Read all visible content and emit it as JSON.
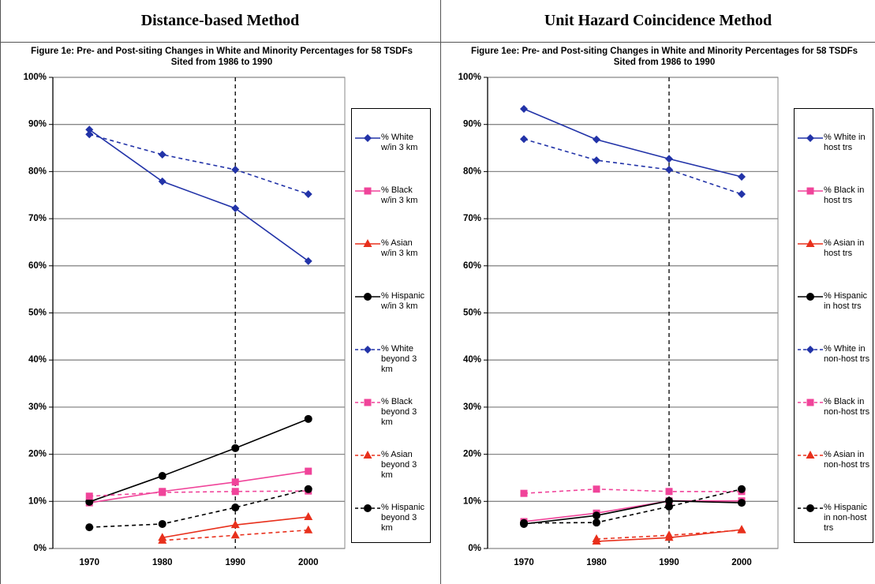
{
  "headers": [
    "Distance-based Method",
    "Unit Hazard Coincidence Method"
  ],
  "chart_data": [
    {
      "type": "line",
      "title": "Figure 1e: Pre- and Post-siting Changes in White and Minority Percentages for 58 TSDFs Sited from 1986 to 1990",
      "categories": [
        "1970",
        "1980",
        "1990",
        "2000"
      ],
      "ylim": [
        0,
        100
      ],
      "yticks": [
        {
          "value": 0,
          "label": "0%"
        },
        {
          "value": 10,
          "label": "10%"
        },
        {
          "value": 20,
          "label": "20%"
        },
        {
          "value": 30,
          "label": "30%"
        },
        {
          "value": 40,
          "label": "40%"
        },
        {
          "value": 50,
          "label": "50%"
        },
        {
          "value": 60,
          "label": "60%"
        },
        {
          "value": 70,
          "label": "70%"
        },
        {
          "value": 80,
          "label": "80%"
        },
        {
          "value": 90,
          "label": "90%"
        },
        {
          "value": 100,
          "label": "100%"
        }
      ],
      "grid": true,
      "vline": "1990",
      "legend": "right",
      "series": [
        {
          "name": "% White w/in 3 km",
          "color": "#2233a8",
          "marker": "diamond",
          "dashed": false,
          "values": [
            88.9,
            77.9,
            72.2,
            61.0
          ]
        },
        {
          "name": "% Black w/in 3 km",
          "color": "#f0449a",
          "marker": "square",
          "dashed": false,
          "values": [
            9.7,
            12.1,
            14.1,
            16.4
          ]
        },
        {
          "name": "% Asian w/in 3 km",
          "color": "#e8301c",
          "marker": "triangle",
          "dashed": false,
          "values": [
            null,
            2.3,
            5.0,
            6.7
          ]
        },
        {
          "name": "% Hispanic w/in 3 km",
          "color": "#000000",
          "marker": "circle",
          "dashed": false,
          "values": [
            9.9,
            15.4,
            21.3,
            27.5
          ]
        },
        {
          "name": "% White beyond 3 km",
          "color": "#2233a8",
          "marker": "diamond",
          "dashed": true,
          "values": [
            87.9,
            83.6,
            80.4,
            75.2
          ]
        },
        {
          "name": "% Black beyond 3 km",
          "color": "#f0449a",
          "marker": "square",
          "dashed": true,
          "values": [
            11.1,
            11.9,
            12.1,
            12.2
          ]
        },
        {
          "name": "% Asian beyond 3 km",
          "color": "#e8301c",
          "marker": "triangle",
          "dashed": true,
          "values": [
            null,
            1.7,
            2.8,
            3.9
          ]
        },
        {
          "name": "% Hispanic beyond 3 km",
          "color": "#000000",
          "marker": "circle",
          "dashed": true,
          "values": [
            4.5,
            5.2,
            8.7,
            12.6
          ]
        }
      ]
    },
    {
      "type": "line",
      "title": "Figure 1ee: Pre- and Post-siting Changes in White and Minority Percentages for 58 TSDFs Sited from 1986 to 1990",
      "categories": [
        "1970",
        "1980",
        "1990",
        "2000"
      ],
      "ylim": [
        0,
        100
      ],
      "yticks": [
        {
          "value": 0,
          "label": "0%"
        },
        {
          "value": 10,
          "label": "10%"
        },
        {
          "value": 20,
          "label": "20%"
        },
        {
          "value": 30,
          "label": "30%"
        },
        {
          "value": 40,
          "label": "40%"
        },
        {
          "value": 50,
          "label": "50%"
        },
        {
          "value": 60,
          "label": "60%"
        },
        {
          "value": 70,
          "label": "70%"
        },
        {
          "value": 80,
          "label": "80%"
        },
        {
          "value": 90,
          "label": "90%"
        },
        {
          "value": 100,
          "label": "100%"
        }
      ],
      "grid": true,
      "vline": "1990",
      "legend": "right",
      "series": [
        {
          "name": "% White in host trs",
          "color": "#2233a8",
          "marker": "diamond",
          "dashed": false,
          "values": [
            93.3,
            86.8,
            82.7,
            78.9
          ]
        },
        {
          "name": "% Black in host trs",
          "color": "#f0449a",
          "marker": "square",
          "dashed": false,
          "values": [
            5.7,
            7.5,
            10.1,
            10.1
          ]
        },
        {
          "name": "% Asian in host trs",
          "color": "#e8301c",
          "marker": "triangle",
          "dashed": false,
          "values": [
            null,
            1.5,
            2.3,
            4.0
          ]
        },
        {
          "name": "% Hispanic in host trs",
          "color": "#000000",
          "marker": "circle",
          "dashed": false,
          "values": [
            5.2,
            7.0,
            10.1,
            9.7
          ]
        },
        {
          "name": "% White in non-host trs",
          "color": "#2233a8",
          "marker": "diamond",
          "dashed": true,
          "values": [
            86.9,
            82.4,
            80.4,
            75.2
          ]
        },
        {
          "name": "% Black in non-host trs",
          "color": "#f0449a",
          "marker": "square",
          "dashed": true,
          "values": [
            11.7,
            12.6,
            12.1,
            12.1
          ]
        },
        {
          "name": "% Asian in non-host trs",
          "color": "#e8301c",
          "marker": "triangle",
          "dashed": true,
          "values": [
            null,
            2.0,
            2.8,
            3.9
          ]
        },
        {
          "name": "% Hispanic in non-host trs",
          "color": "#000000",
          "marker": "circle",
          "dashed": true,
          "values": [
            5.4,
            5.5,
            8.9,
            12.6
          ]
        }
      ]
    }
  ]
}
